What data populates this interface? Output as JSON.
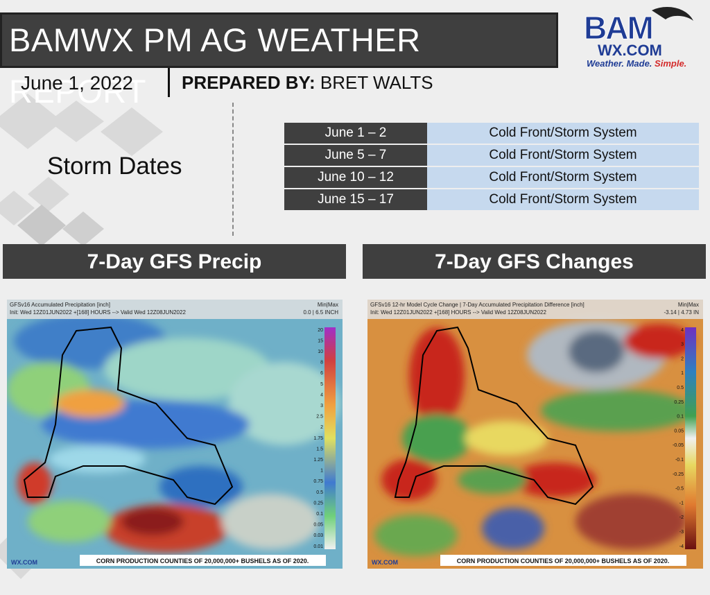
{
  "header": {
    "title": "BAMWX PM AG WEATHER REPORT",
    "date": "June 1, 2022",
    "prepared_label": "PREPARED BY:",
    "prepared_name": "BRET WALTS"
  },
  "logo": {
    "brand": "BAM",
    "site": "WX.COM",
    "tagline": [
      "Weather.",
      "Made.",
      "Simple."
    ]
  },
  "storm_dates": {
    "heading": "Storm Dates",
    "rows": [
      [
        "June 1 – 2",
        "Cold Front/Storm System"
      ],
      [
        "June 5 – 7",
        "Cold Front/Storm System"
      ],
      [
        "June 10 – 12",
        "Cold Front/Storm System"
      ],
      [
        "June 15 – 17",
        "Cold Front/Storm System"
      ]
    ]
  },
  "panels": [
    {
      "heading": "7-Day GFS Precip",
      "map": {
        "title": "GFSv16 Accumulated Precipitation [inch]",
        "subtitle": "Init: Wed 12Z01JUN2022 +[168] HOURS --> Valid Wed 12Z08JUN2022",
        "range_label": "Min|Max",
        "range": "0.0 | 6.5 INCH",
        "legend": [
          "20",
          "15",
          "10",
          "8",
          "6",
          "5",
          "4",
          "3",
          "2.5",
          "2",
          "1.75",
          "1.5",
          "1.25",
          "1",
          "0.75",
          "0.5",
          "0.25",
          "0.1",
          "0.05",
          "0.03",
          "0.01"
        ],
        "footer": "CORN PRODUCTION COUNTIES OF 20,000,000+ BUSHELS AS OF 2020.",
        "watermark": "WX.COM"
      }
    },
    {
      "heading": "7-Day GFS Changes",
      "map": {
        "title": "GFSv16 12-hr Model Cycle Change | 7-Day Accumulated Precipitation Difference [inch]",
        "subtitle": "Init: Wed 12Z01JUN2022 +[168] HOURS --> Valid Wed 12Z08JUN2022",
        "range_label": "Min|Max",
        "range": "-3.14 | 4.73 IN",
        "legend": [
          "4",
          "3",
          "2",
          "1",
          "0.5",
          "0.25",
          "0.1",
          "0.05",
          "-0.05",
          "-0.1",
          "-0.25",
          "-0.5",
          "-1",
          "-2",
          "-3",
          "-4"
        ],
        "footer": "CORN PRODUCTION COUNTIES OF 20,000,000+ BUSHELS AS OF 2020.",
        "watermark": "WX.COM"
      }
    }
  ]
}
